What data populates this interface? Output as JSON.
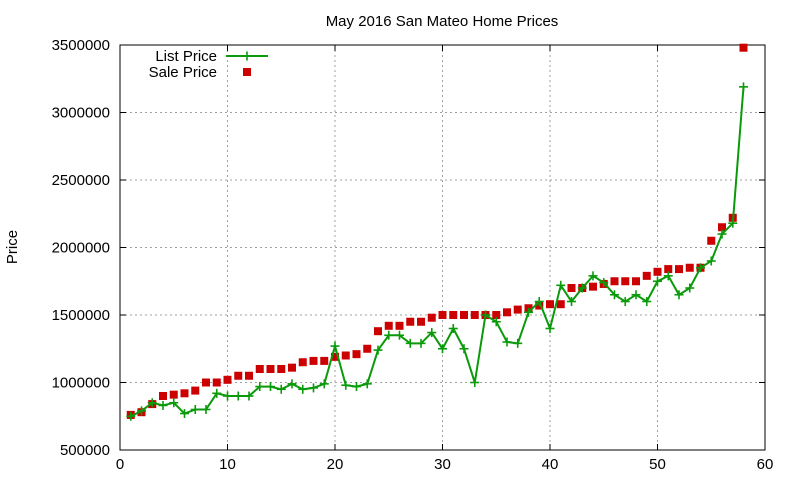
{
  "chart_data": {
    "type": "scatter",
    "title": "May 2016 San Mateo Home Prices",
    "xlabel": "",
    "ylabel": "Price",
    "xlim": [
      0,
      60
    ],
    "ylim": [
      500000,
      3500000
    ],
    "xticks": [
      "0",
      "10",
      "20",
      "30",
      "40",
      "50",
      "60"
    ],
    "yticks": [
      "500000",
      "1000000",
      "1500000",
      "2000000",
      "2500000",
      "3000000",
      "3500000"
    ],
    "grid": true,
    "legend_position": "top-left",
    "x": [
      1,
      2,
      3,
      4,
      5,
      6,
      7,
      8,
      9,
      10,
      11,
      12,
      13,
      14,
      15,
      16,
      17,
      18,
      19,
      20,
      21,
      22,
      23,
      24,
      25,
      26,
      27,
      28,
      29,
      30,
      31,
      32,
      33,
      34,
      35,
      36,
      37,
      38,
      39,
      40,
      41,
      42,
      43,
      44,
      45,
      46,
      47,
      48,
      49,
      50,
      51,
      52,
      53,
      54,
      55,
      56,
      57,
      58
    ],
    "series": [
      {
        "name": "List Price",
        "style": "line-plus",
        "color": "#0a9a0a",
        "values": [
          750000,
          790000,
          850000,
          830000,
          850000,
          770000,
          800000,
          800000,
          920000,
          900000,
          900000,
          900000,
          970000,
          970000,
          950000,
          990000,
          950000,
          960000,
          990000,
          1270000,
          980000,
          970000,
          990000,
          1240000,
          1350000,
          1350000,
          1290000,
          1290000,
          1370000,
          1250000,
          1400000,
          1250000,
          1000000,
          1500000,
          1450000,
          1300000,
          1290000,
          1520000,
          1600000,
          1400000,
          1720000,
          1600000,
          1700000,
          1790000,
          1740000,
          1650000,
          1600000,
          1650000,
          1600000,
          1750000,
          1790000,
          1650000,
          1700000,
          1850000,
          1900000,
          2100000,
          2180000,
          3190000
        ]
      },
      {
        "name": "Sale Price",
        "style": "square",
        "color": "#cc0000",
        "values": [
          760000,
          780000,
          840000,
          900000,
          910000,
          920000,
          940000,
          1000000,
          1000000,
          1020000,
          1050000,
          1050000,
          1100000,
          1100000,
          1100000,
          1110000,
          1150000,
          1160000,
          1160000,
          1190000,
          1200000,
          1210000,
          1250000,
          1380000,
          1420000,
          1420000,
          1450000,
          1450000,
          1480000,
          1500000,
          1500000,
          1500000,
          1500000,
          1500000,
          1500000,
          1520000,
          1540000,
          1550000,
          1570000,
          1580000,
          1580000,
          1700000,
          1700000,
          1710000,
          1730000,
          1750000,
          1750000,
          1750000,
          1790000,
          1820000,
          1840000,
          1840000,
          1850000,
          1850000,
          2050000,
          2150000,
          2220000,
          3480000
        ]
      }
    ]
  }
}
